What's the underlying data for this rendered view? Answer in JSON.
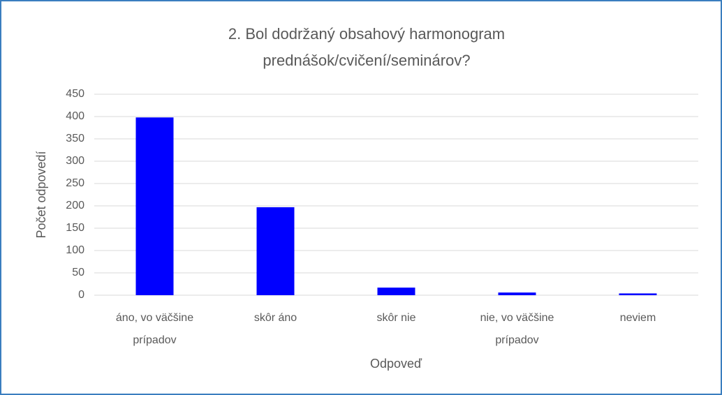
{
  "chart_data": {
    "type": "bar",
    "title": [
      "2. Bol dodržaný obsahový  harmonogram",
      "prednášok/cvičení/seminárov?"
    ],
    "x_label": "Odpoveď",
    "y_label": "Počet odpovedí",
    "categories": [
      "áno, vo väčšine prípadov",
      "skôr áno",
      "skôr nie",
      "nie, vo väčšine prípadov",
      "neviem"
    ],
    "values": [
      398,
      197,
      17,
      6,
      4
    ],
    "color": "#0000ff",
    "ylim": [
      0,
      450
    ],
    "yticks": [
      0,
      50,
      100,
      150,
      200,
      250,
      300,
      350,
      400,
      450
    ],
    "grid": true
  }
}
